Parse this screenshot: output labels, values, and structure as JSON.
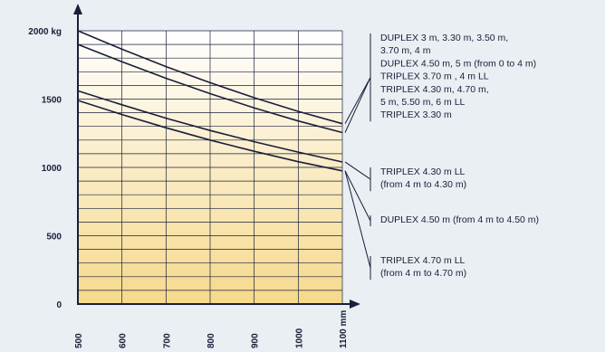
{
  "chart_data": {
    "type": "line",
    "x": [
      500,
      600,
      700,
      800,
      900,
      1000,
      1100
    ],
    "x_tick_labels": [
      "500",
      "600",
      "700",
      "800",
      "900",
      "1000",
      "1100 mm"
    ],
    "y_ticks": [
      0,
      500,
      1000,
      1500,
      2000
    ],
    "y_tick_labels": [
      "0",
      "500",
      "1000",
      "1500",
      "2000 kg"
    ],
    "ylim": [
      0,
      2000
    ],
    "xlim": [
      500,
      1100
    ],
    "series": [
      {
        "values": [
          2000,
          1865,
          1738,
          1620,
          1510,
          1410,
          1320
        ]
      },
      {
        "values": [
          1900,
          1773,
          1652,
          1540,
          1436,
          1340,
          1255
        ]
      },
      {
        "values": [
          1560,
          1458,
          1360,
          1270,
          1188,
          1112,
          1040
        ]
      },
      {
        "values": [
          1490,
          1387,
          1290,
          1200,
          1118,
          1042,
          975
        ]
      }
    ],
    "grid": true,
    "annotations": [
      {
        "lines": [
          "DUPLEX 3 m, 3.30 m, 3.50 m,",
          "3.70 m, 4 m",
          "DUPLEX 4.50 m, 5 m (from 0 to 4 m)",
          "TRIPLEX 3.70 m , 4 m LL",
          "TRIPLEX 4.30 m, 4.70 m,",
          "5 m, 5.50 m, 6 m LL",
          "TRIPLEX 3.30 m"
        ]
      },
      {
        "lines": [
          "TRIPLEX 4.30 m LL",
          "(from 4 m to 4.30 m)"
        ]
      },
      {
        "lines": [
          "DUPLEX 4.50 m (from 4 m to 4.50 m)"
        ]
      },
      {
        "lines": [
          "TRIPLEX 4.70 m LL",
          "(from 4 m to 4.70 m)"
        ]
      }
    ],
    "colors": {
      "line": "#1a1f3a",
      "grid": "#1a1f3a",
      "gradient_top": "#ffffff",
      "gradient_bottom": "#f5d98c",
      "background": "#e9eff3"
    }
  }
}
